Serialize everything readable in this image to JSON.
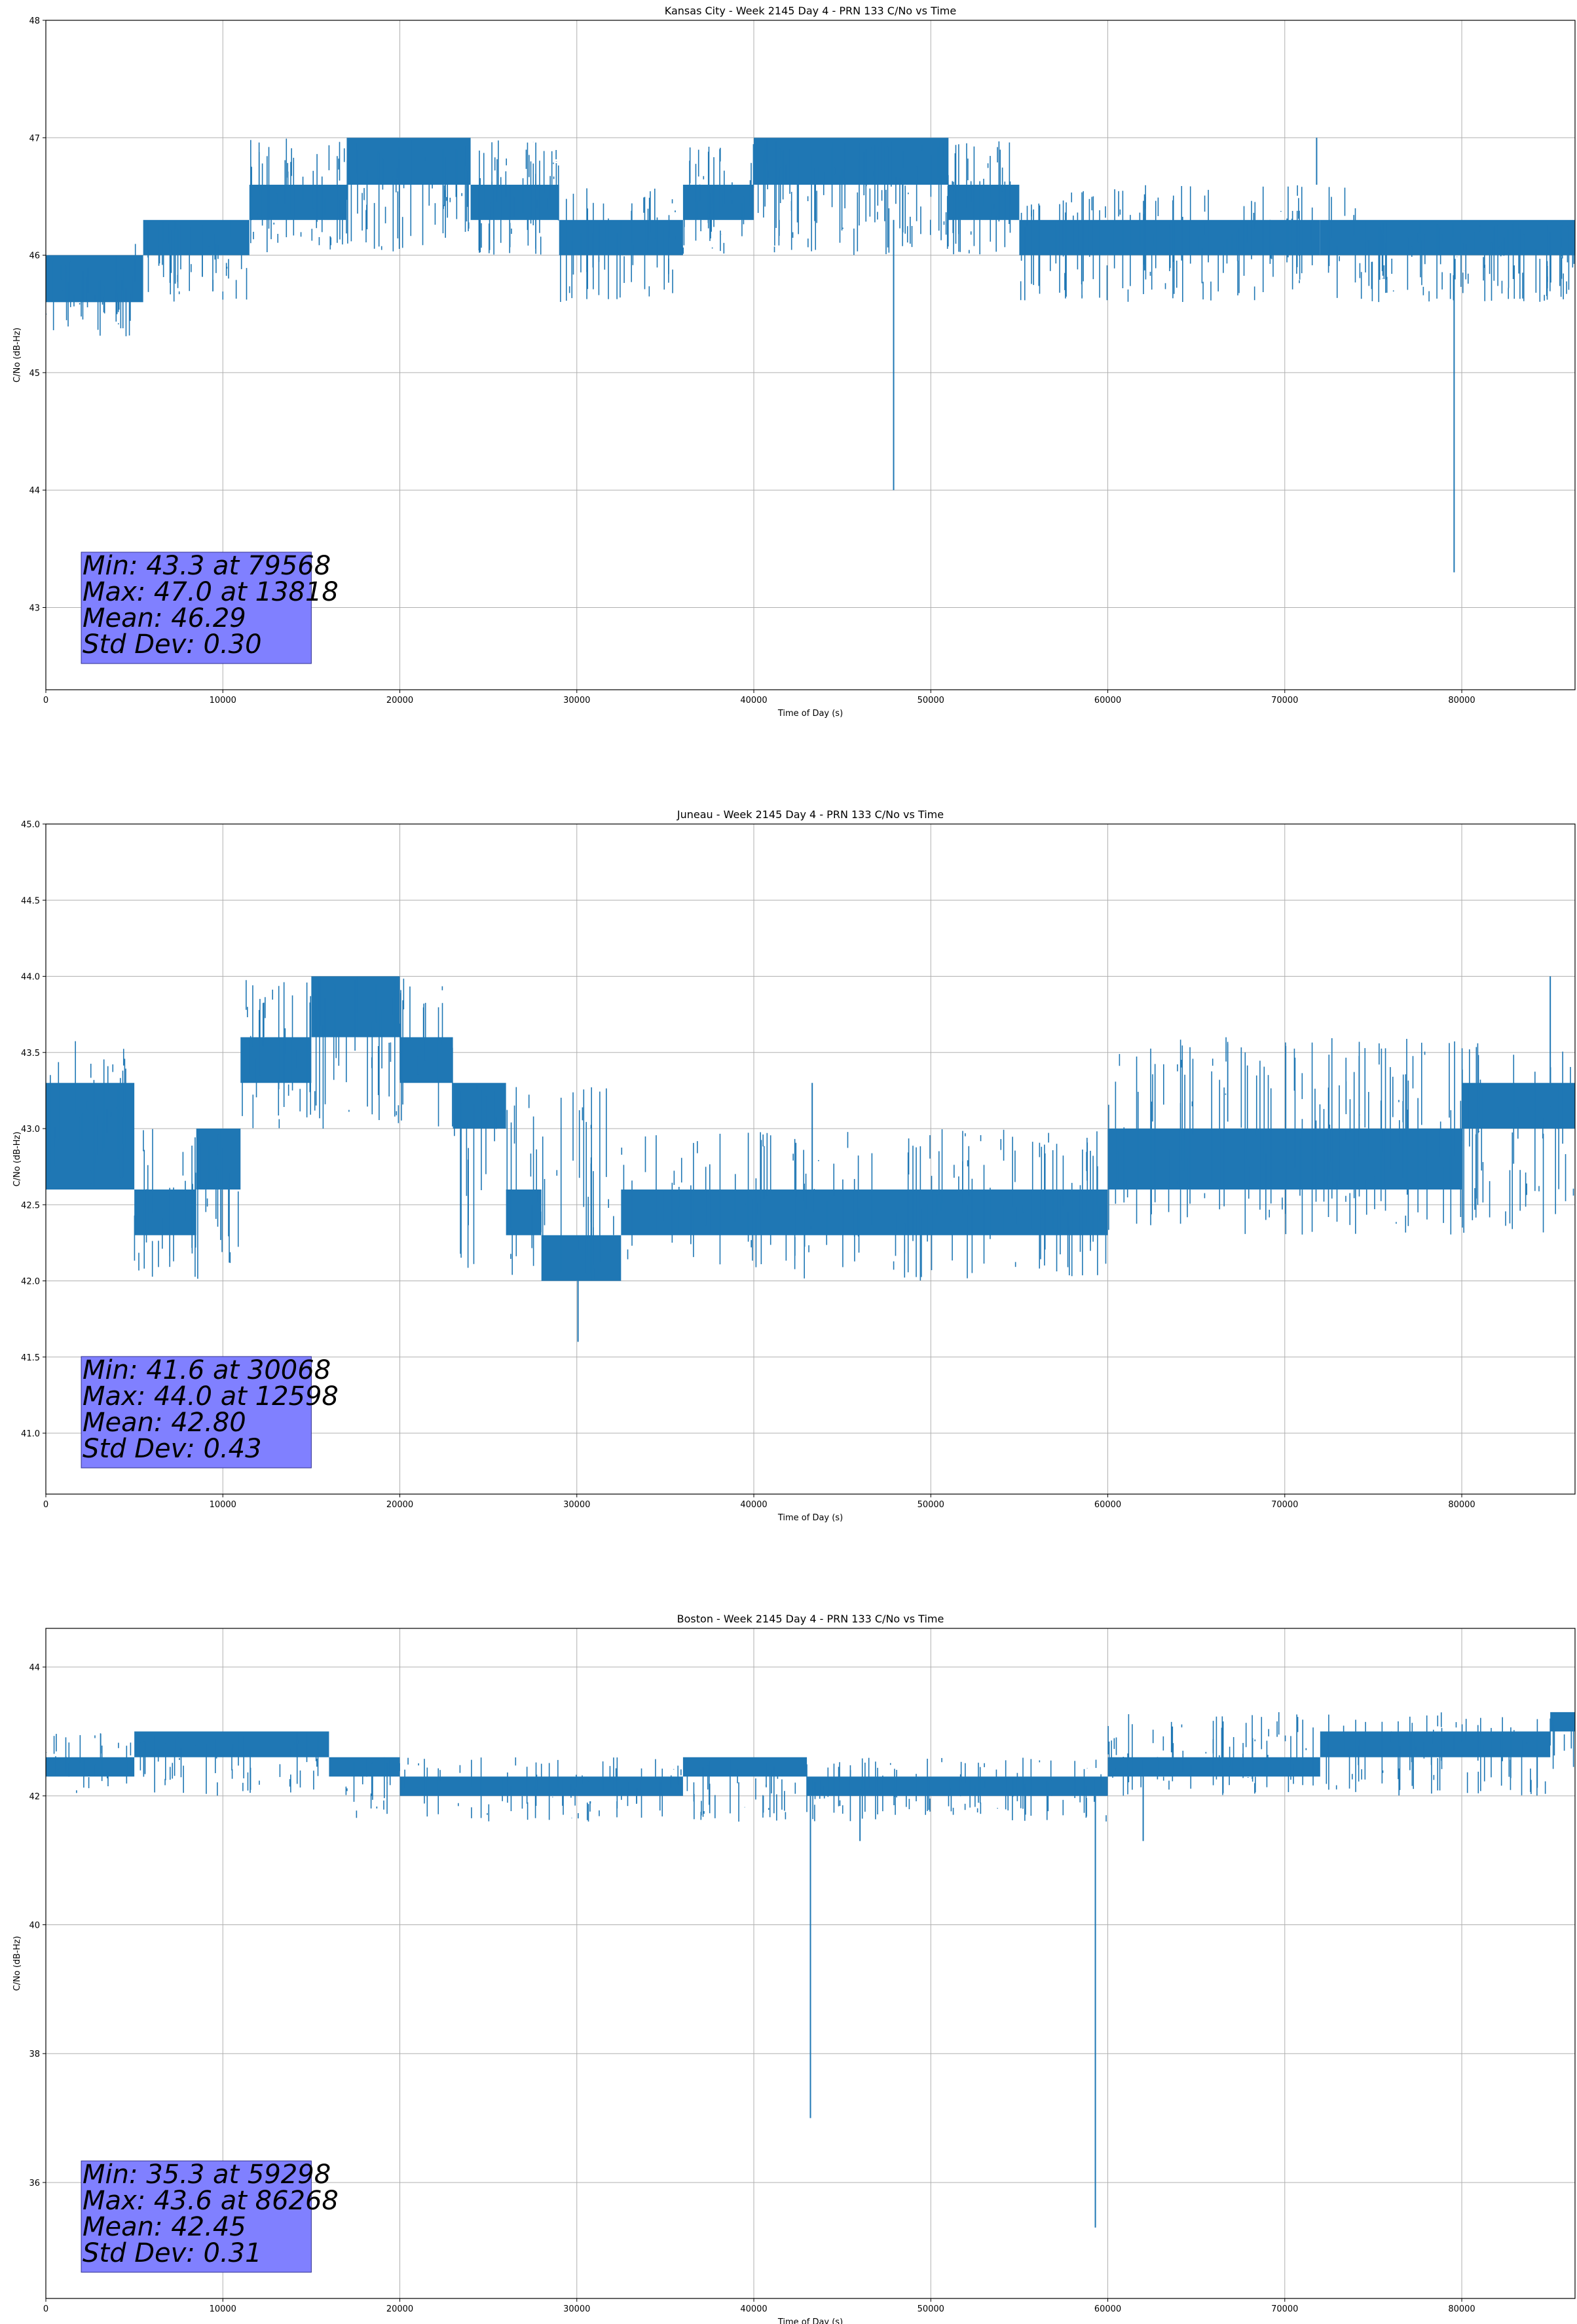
{
  "chart_data": [
    {
      "type": "line",
      "title": "Kansas City - Week 2145 Day 4 - PRN 133 C/No vs Time",
      "xlabel": "Time of Day (s)",
      "ylabel": "C/No (dB-Hz)",
      "xlim": [
        0,
        86400
      ],
      "ylim": [
        42.3,
        48.0
      ],
      "xticks": [
        0,
        10000,
        20000,
        30000,
        40000,
        50000,
        60000,
        70000,
        80000
      ],
      "yticks": [
        43,
        44,
        45,
        46,
        47,
        48
      ],
      "ytick_labels": [
        "43",
        "44",
        "45",
        "46",
        "47",
        "48"
      ],
      "grid": true,
      "color": "#1f77b4",
      "segments": [
        {
          "x0": 0,
          "x1": 5500,
          "lo": 45.6,
          "hi": 46.0
        },
        {
          "x0": 5500,
          "x1": 11500,
          "lo": 46.0,
          "hi": 46.3
        },
        {
          "x0": 11500,
          "x1": 17000,
          "lo": 46.3,
          "hi": 46.6
        },
        {
          "x0": 17000,
          "x1": 24000,
          "lo": 46.6,
          "hi": 47.0
        },
        {
          "x0": 24000,
          "x1": 29000,
          "lo": 46.3,
          "hi": 46.6
        },
        {
          "x0": 29000,
          "x1": 36000,
          "lo": 46.0,
          "hi": 46.3
        },
        {
          "x0": 36000,
          "x1": 40000,
          "lo": 46.3,
          "hi": 46.6
        },
        {
          "x0": 40000,
          "x1": 51000,
          "lo": 46.6,
          "hi": 47.0
        },
        {
          "x0": 51000,
          "x1": 55000,
          "lo": 46.3,
          "hi": 46.6
        },
        {
          "x0": 55000,
          "x1": 72000,
          "lo": 46.0,
          "hi": 46.3
        },
        {
          "x0": 72000,
          "x1": 86400,
          "lo": 46.0,
          "hi": 46.3
        }
      ],
      "noise": [
        {
          "x0": 0,
          "x1": 5000,
          "lo": 45.3,
          "hi": 46.0,
          "count": 35
        },
        {
          "x0": 5000,
          "x1": 11500,
          "lo": 45.6,
          "hi": 46.3,
          "count": 40
        },
        {
          "x0": 11500,
          "x1": 29000,
          "lo": 46.0,
          "hi": 47.0,
          "count": 140
        },
        {
          "x0": 29000,
          "x1": 36000,
          "lo": 45.6,
          "hi": 46.6,
          "count": 40
        },
        {
          "x0": 36000,
          "x1": 55000,
          "lo": 46.0,
          "hi": 47.0,
          "count": 150
        },
        {
          "x0": 55000,
          "x1": 74000,
          "lo": 45.6,
          "hi": 46.6,
          "count": 110
        },
        {
          "x0": 74000,
          "x1": 86400,
          "lo": 45.6,
          "hi": 46.3,
          "count": 90
        }
      ],
      "spikes": [
        {
          "x": 47900,
          "from": 46.3,
          "to": 44.0
        },
        {
          "x": 79568,
          "from": 46.0,
          "to": 43.3
        },
        {
          "x": 71800,
          "from": 46.6,
          "to": 47.0
        }
      ],
      "min": {
        "value": 43.3,
        "time": 79568
      },
      "max": {
        "value": 47.0,
        "time": 13818
      },
      "mean": 46.29,
      "std": 0.3,
      "stats_lines": [
        "Min: 43.3 at 79568",
        "Max: 47.0 at 13818",
        "Mean: 46.29",
        "Std Dev: 0.30"
      ],
      "stats_box_color": "#8080ff"
    },
    {
      "type": "line",
      "title": "Juneau - Week 2145 Day 4 - PRN 133 C/No vs Time",
      "xlabel": "Time of Day (s)",
      "ylabel": "C/No (dB-Hz)",
      "xlim": [
        0,
        86400
      ],
      "ylim": [
        40.6,
        45.0
      ],
      "xticks": [
        0,
        10000,
        20000,
        30000,
        40000,
        50000,
        60000,
        70000,
        80000
      ],
      "yticks": [
        41.0,
        41.5,
        42.0,
        42.5,
        43.0,
        43.5,
        44.0,
        44.5,
        45.0
      ],
      "ytick_labels": [
        "41.0",
        "41.5",
        "42.0",
        "42.5",
        "43.0",
        "43.5",
        "44.0",
        "44.5",
        "45.0"
      ],
      "grid": true,
      "color": "#1f77b4",
      "segments": [
        {
          "x0": 0,
          "x1": 5000,
          "lo": 42.6,
          "hi": 43.3
        },
        {
          "x0": 5000,
          "x1": 8500,
          "lo": 42.3,
          "hi": 42.6
        },
        {
          "x0": 8500,
          "x1": 11000,
          "lo": 42.6,
          "hi": 43.0
        },
        {
          "x0": 11000,
          "x1": 15000,
          "lo": 43.3,
          "hi": 43.6
        },
        {
          "x0": 15000,
          "x1": 20000,
          "lo": 43.6,
          "hi": 44.0
        },
        {
          "x0": 20000,
          "x1": 23000,
          "lo": 43.3,
          "hi": 43.6
        },
        {
          "x0": 23000,
          "x1": 26000,
          "lo": 43.0,
          "hi": 43.3
        },
        {
          "x0": 26000,
          "x1": 28000,
          "lo": 42.3,
          "hi": 42.6
        },
        {
          "x0": 28000,
          "x1": 32500,
          "lo": 42.0,
          "hi": 42.3
        },
        {
          "x0": 32500,
          "x1": 60000,
          "lo": 42.3,
          "hi": 42.6
        },
        {
          "x0": 60000,
          "x1": 80000,
          "lo": 42.6,
          "hi": 43.0
        },
        {
          "x0": 80000,
          "x1": 86400,
          "lo": 43.0,
          "hi": 43.3
        }
      ],
      "noise": [
        {
          "x0": 0,
          "x1": 5000,
          "lo": 42.6,
          "hi": 43.6,
          "count": 30
        },
        {
          "x0": 5000,
          "x1": 11000,
          "lo": 42.0,
          "hi": 43.0,
          "count": 35
        },
        {
          "x0": 11000,
          "x1": 23000,
          "lo": 43.0,
          "hi": 44.0,
          "count": 70
        },
        {
          "x0": 23000,
          "x1": 33000,
          "lo": 42.0,
          "hi": 43.3,
          "count": 50
        },
        {
          "x0": 33000,
          "x1": 60000,
          "lo": 42.0,
          "hi": 43.0,
          "count": 120
        },
        {
          "x0": 60000,
          "x1": 86400,
          "lo": 42.3,
          "hi": 43.6,
          "count": 150
        }
      ],
      "spikes": [
        {
          "x": 30068,
          "from": 42.0,
          "to": 41.6
        },
        {
          "x": 43300,
          "from": 42.6,
          "to": 43.3
        },
        {
          "x": 85000,
          "from": 43.3,
          "to": 44.0
        }
      ],
      "min": {
        "value": 41.6,
        "time": 30068
      },
      "max": {
        "value": 44.0,
        "time": 12598
      },
      "mean": 42.8,
      "std": 0.43,
      "stats_lines": [
        "Min: 41.6 at 30068",
        "Max: 44.0 at 12598",
        "Mean: 42.80",
        "Std Dev: 0.43"
      ],
      "stats_box_color": "#8080ff"
    },
    {
      "type": "line",
      "title": "Boston - Week 2145 Day 4 - PRN 133 C/No vs Time",
      "xlabel": "Time of Day (s)",
      "ylabel": "C/No (dB-Hz)",
      "xlim": [
        0,
        86400
      ],
      "ylim": [
        34.2,
        44.6
      ],
      "xticks": [
        0,
        10000,
        20000,
        30000,
        40000,
        50000,
        60000,
        70000,
        80000
      ],
      "yticks": [
        36,
        38,
        40,
        42,
        44
      ],
      "ytick_labels": [
        "36",
        "38",
        "40",
        "42",
        "44"
      ],
      "grid": true,
      "color": "#1f77b4",
      "segments": [
        {
          "x0": 0,
          "x1": 5000,
          "lo": 42.3,
          "hi": 42.6
        },
        {
          "x0": 5000,
          "x1": 16000,
          "lo": 42.6,
          "hi": 43.0
        },
        {
          "x0": 16000,
          "x1": 20000,
          "lo": 42.3,
          "hi": 42.6
        },
        {
          "x0": 20000,
          "x1": 36000,
          "lo": 42.0,
          "hi": 42.3
        },
        {
          "x0": 36000,
          "x1": 43000,
          "lo": 42.3,
          "hi": 42.6
        },
        {
          "x0": 43000,
          "x1": 60000,
          "lo": 42.0,
          "hi": 42.3
        },
        {
          "x0": 60000,
          "x1": 72000,
          "lo": 42.3,
          "hi": 42.6
        },
        {
          "x0": 72000,
          "x1": 85000,
          "lo": 42.6,
          "hi": 43.0
        },
        {
          "x0": 85000,
          "x1": 86400,
          "lo": 43.0,
          "hi": 43.3
        }
      ],
      "noise": [
        {
          "x0": 0,
          "x1": 16000,
          "lo": 42.0,
          "hi": 43.0,
          "count": 70
        },
        {
          "x0": 16000,
          "x1": 36000,
          "lo": 41.6,
          "hi": 42.6,
          "count": 80
        },
        {
          "x0": 36000,
          "x1": 60000,
          "lo": 41.6,
          "hi": 42.6,
          "count": 110
        },
        {
          "x0": 60000,
          "x1": 86400,
          "lo": 42.0,
          "hi": 43.3,
          "count": 130
        }
      ],
      "spikes": [
        {
          "x": 43200,
          "from": 42.0,
          "to": 37.0
        },
        {
          "x": 59298,
          "from": 42.0,
          "to": 35.3
        },
        {
          "x": 46000,
          "from": 42.0,
          "to": 41.3
        },
        {
          "x": 62000,
          "from": 42.3,
          "to": 41.3
        }
      ],
      "min": {
        "value": 35.3,
        "time": 59298
      },
      "max": {
        "value": 43.6,
        "time": 86268
      },
      "mean": 42.45,
      "std": 0.31,
      "stats_lines": [
        "Min: 35.3 at 59298",
        "Max: 43.6 at 86268",
        "Mean: 42.45",
        "Std Dev: 0.31"
      ],
      "stats_box_color": "#8080ff"
    }
  ]
}
